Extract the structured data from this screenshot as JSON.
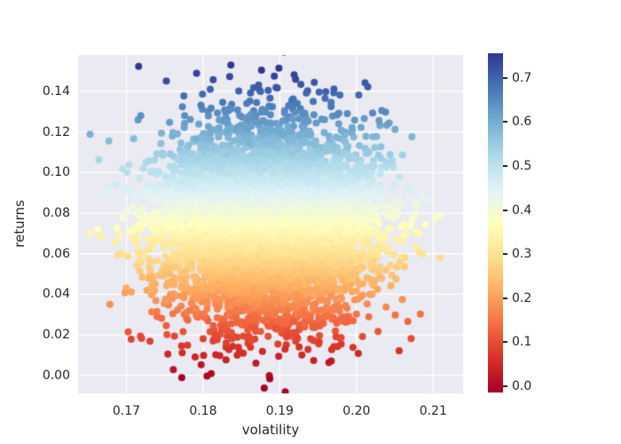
{
  "chart_data": {
    "type": "scatter",
    "title": "",
    "xlabel": "volatility",
    "ylabel": "returns",
    "xlim": [
      0.1637,
      0.2139
    ],
    "ylim": [
      -0.0088,
      0.1579
    ],
    "xticks": {
      "values": [
        0.17,
        0.18,
        0.19,
        0.2,
        0.21
      ],
      "labels": [
        "0.17",
        "0.18",
        "0.19",
        "0.20",
        "0.21"
      ]
    },
    "yticks": {
      "values": [
        0.0,
        0.02,
        0.04,
        0.06,
        0.08,
        0.1,
        0.12,
        0.14
      ],
      "labels": [
        "0.00",
        "0.02",
        "0.04",
        "0.06",
        "0.08",
        "0.10",
        "0.12",
        "0.14"
      ]
    },
    "grid": true,
    "legend": false,
    "style": {
      "figure_background": "#ffffff",
      "axes_background": "#eaeaf2",
      "grid_color": "#ffffff",
      "text_color": "#262626"
    },
    "points": {
      "count": 6000,
      "distribution": "gaussian",
      "x_mean": 0.1883,
      "x_std": 0.007,
      "y_mean": 0.074,
      "y_std": 0.0242,
      "color_value": "5 * returns",
      "color_jitter_std": 0.004,
      "marker_radius_px": 4,
      "seed": 1337
    },
    "colormap": {
      "name": "RdYlBu",
      "vmin": -0.014,
      "vmax": 0.756,
      "stops": [
        "#a50026",
        "#d73027",
        "#f46d43",
        "#fdae61",
        "#fee090",
        "#ffffbf",
        "#e0f3f8",
        "#abd9e9",
        "#74add1",
        "#4575b4",
        "#313695"
      ]
    },
    "colorbar": {
      "ticks": {
        "values": [
          0.0,
          0.1,
          0.2,
          0.3,
          0.4,
          0.5,
          0.6,
          0.7
        ],
        "labels": [
          "0.0",
          "0.1",
          "0.2",
          "0.3",
          "0.4",
          "0.5",
          "0.6",
          "0.7"
        ]
      }
    }
  }
}
